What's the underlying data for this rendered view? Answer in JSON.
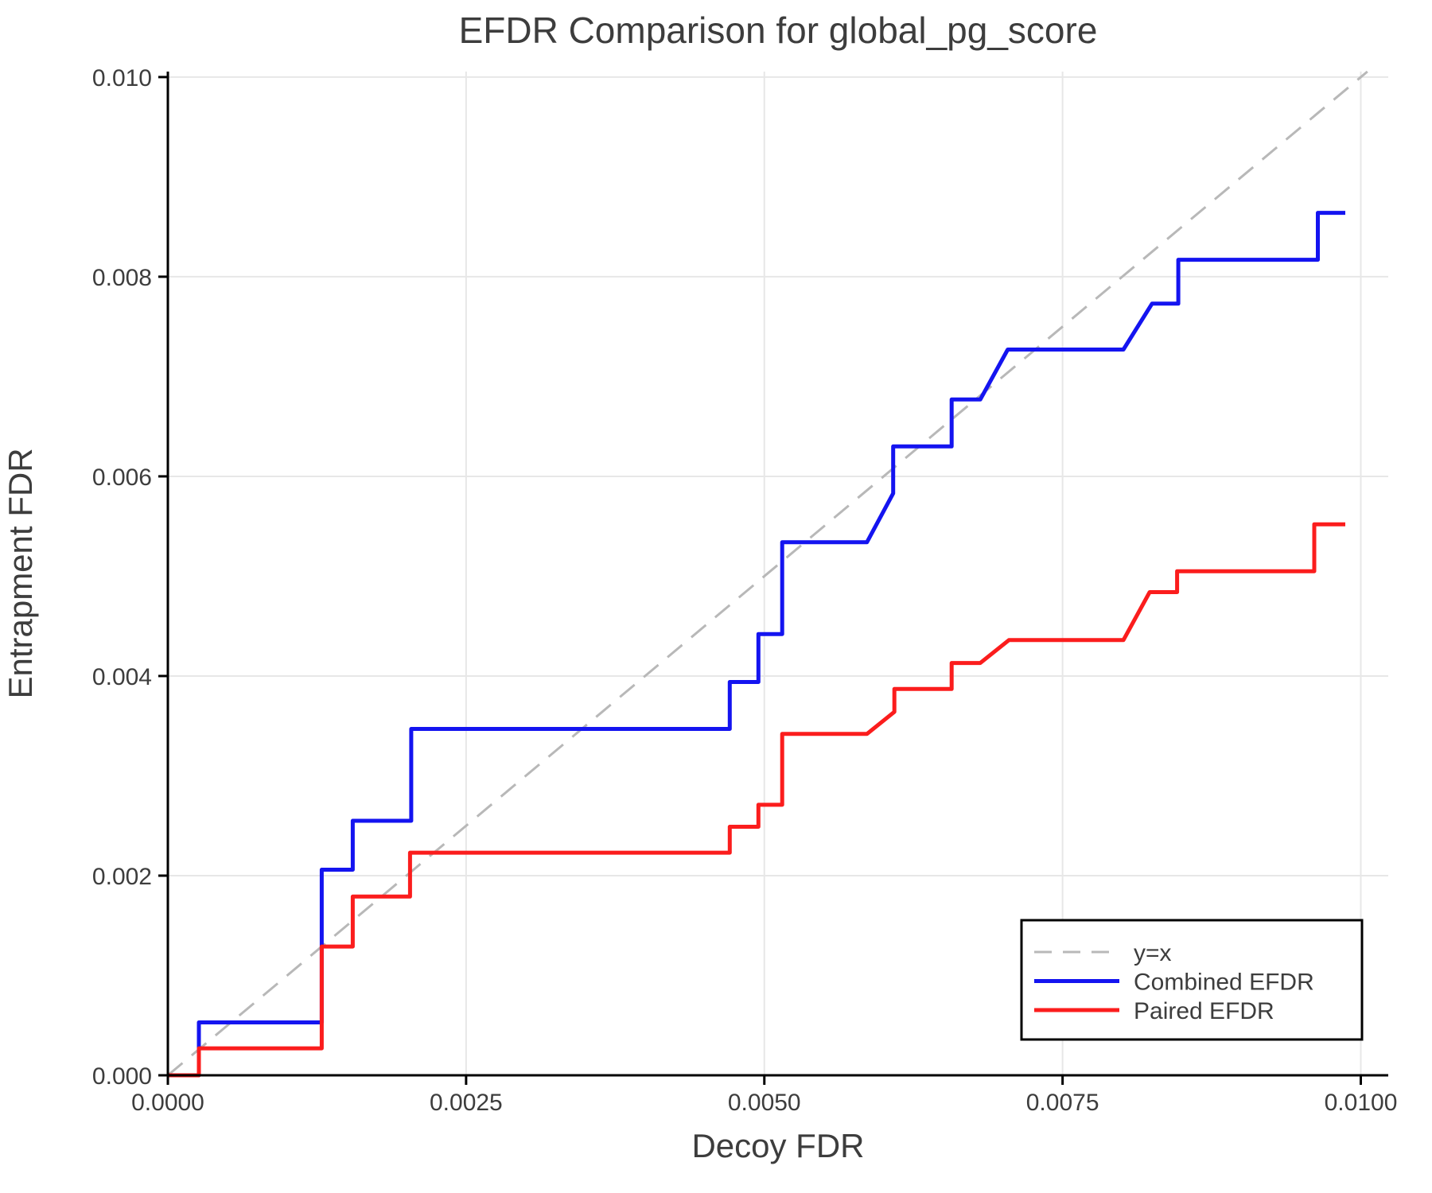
{
  "chart_data": {
    "type": "line",
    "title": "EFDR Comparison for global_pg_score",
    "xlabel": "Decoy FDR",
    "ylabel": "Entrapment FDR",
    "xlim": [
      0,
      0.01023
    ],
    "ylim": [
      0,
      0.010055
    ],
    "grid": true,
    "x_ticks": {
      "values": [
        0,
        0.0025,
        0.005,
        0.0075,
        0.01
      ],
      "labels": [
        "0.0000",
        "0.0025",
        "0.0050",
        "0.0075",
        "0.0100"
      ]
    },
    "y_ticks": {
      "values": [
        0,
        0.002,
        0.004,
        0.006,
        0.008,
        0.01
      ],
      "labels": [
        "0.000",
        "0.002",
        "0.004",
        "0.006",
        "0.008",
        "0.010"
      ]
    },
    "colors": {
      "reference": "#b8b8b8",
      "combined": "#1414f0",
      "paired": "#fb1d1d",
      "grid": "#e7e7e7",
      "spine": "#000000",
      "text": "#3d3d3d"
    },
    "legend": {
      "position": "lower right",
      "entries": [
        {
          "label": "y=x",
          "color": "#b8b8b8",
          "dashed": true
        },
        {
          "label": "Combined EFDR",
          "color": "#1414f0",
          "dashed": false
        },
        {
          "label": "Paired EFDR",
          "color": "#fb1d1d",
          "dashed": false
        }
      ]
    },
    "series": [
      {
        "name": "y=x",
        "role": "reference",
        "dashed": true,
        "color": "#b8b8b8",
        "points": [
          [
            0,
            0
          ],
          [
            0.010055,
            0.010055
          ]
        ]
      },
      {
        "name": "Combined EFDR",
        "role": "combined",
        "dashed": false,
        "color": "#1414f0",
        "points": [
          [
            0.0,
            0.0
          ],
          [
            0.00026,
            0.0
          ],
          [
            0.00026,
            0.00053
          ],
          [
            0.00129,
            0.00053
          ],
          [
            0.00129,
            0.00206
          ],
          [
            0.00155,
            0.00206
          ],
          [
            0.00155,
            0.00255
          ],
          [
            0.00204,
            0.00255
          ],
          [
            0.00204,
            0.00347
          ],
          [
            0.00471,
            0.00347
          ],
          [
            0.00471,
            0.00394
          ],
          [
            0.00495,
            0.00394
          ],
          [
            0.00495,
            0.00442
          ],
          [
            0.00515,
            0.00442
          ],
          [
            0.00515,
            0.00534
          ],
          [
            0.00586,
            0.00534
          ],
          [
            0.00608,
            0.00583
          ],
          [
            0.00608,
            0.0063
          ],
          [
            0.00657,
            0.0063
          ],
          [
            0.00657,
            0.00677
          ],
          [
            0.00681,
            0.00677
          ],
          [
            0.00704,
            0.00727
          ],
          [
            0.00801,
            0.00727
          ],
          [
            0.00825,
            0.00773
          ],
          [
            0.00847,
            0.00773
          ],
          [
            0.00847,
            0.00817
          ],
          [
            0.00964,
            0.00817
          ],
          [
            0.00964,
            0.00864
          ],
          [
            0.00987,
            0.00864
          ]
        ]
      },
      {
        "name": "Paired EFDR",
        "role": "paired",
        "dashed": false,
        "color": "#fb1d1d",
        "points": [
          [
            0.0,
            0.0
          ],
          [
            0.00026,
            0.0
          ],
          [
            0.00026,
            0.00027
          ],
          [
            0.00129,
            0.00027
          ],
          [
            0.00129,
            0.00129
          ],
          [
            0.00155,
            0.00129
          ],
          [
            0.00155,
            0.00179
          ],
          [
            0.00203,
            0.00179
          ],
          [
            0.00203,
            0.00223
          ],
          [
            0.00471,
            0.00223
          ],
          [
            0.00471,
            0.00249
          ],
          [
            0.00495,
            0.00249
          ],
          [
            0.00495,
            0.00271
          ],
          [
            0.00515,
            0.00271
          ],
          [
            0.00515,
            0.00342
          ],
          [
            0.00586,
            0.00342
          ],
          [
            0.00609,
            0.00364
          ],
          [
            0.00609,
            0.00387
          ],
          [
            0.00657,
            0.00387
          ],
          [
            0.00657,
            0.00413
          ],
          [
            0.00681,
            0.00413
          ],
          [
            0.00705,
            0.00436
          ],
          [
            0.00801,
            0.00436
          ],
          [
            0.00823,
            0.00484
          ],
          [
            0.00846,
            0.00484
          ],
          [
            0.00846,
            0.00505
          ],
          [
            0.00961,
            0.00505
          ],
          [
            0.00961,
            0.00552
          ],
          [
            0.00987,
            0.00552
          ]
        ]
      }
    ]
  }
}
